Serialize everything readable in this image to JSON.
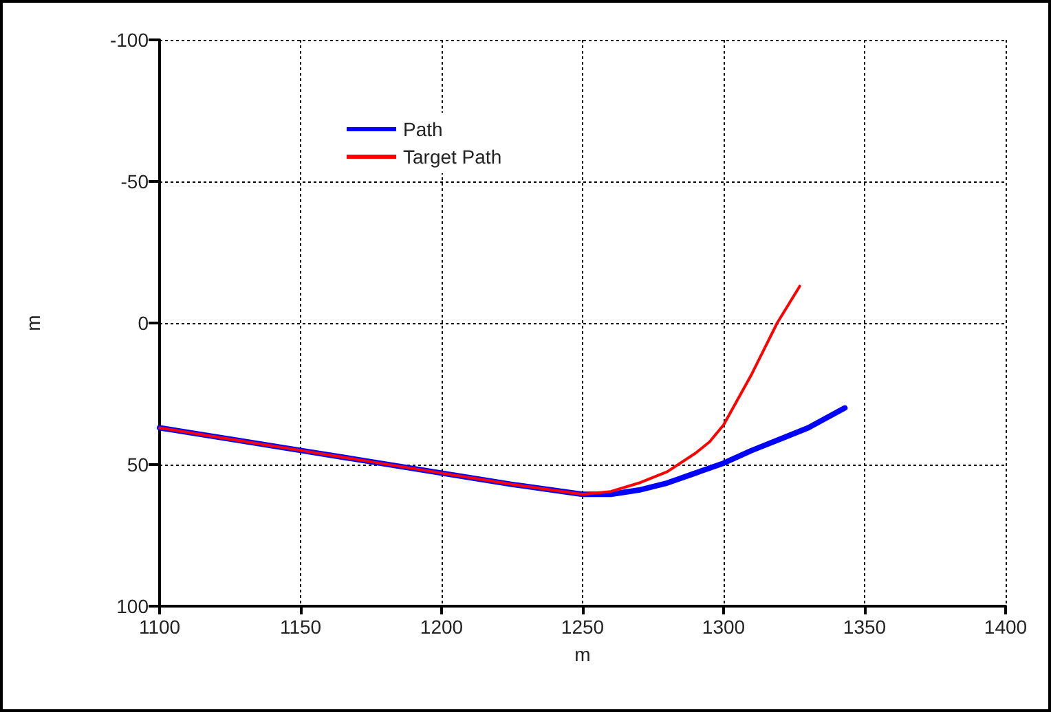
{
  "chart_data": {
    "type": "line",
    "xlabel": "m",
    "ylabel": "m",
    "xlim": [
      1100,
      1400
    ],
    "xticks": [
      1100,
      1150,
      1200,
      1250,
      1300,
      1350,
      1400
    ],
    "ylim": [
      100,
      -100
    ],
    "yticks": [
      -100,
      -50,
      0,
      50,
      100
    ],
    "grid": true,
    "legend": "top left",
    "marker": "none",
    "line_style": "solid",
    "series": [
      {
        "name": "Path",
        "color": "#0000ff",
        "x": [
          1100,
          1125,
          1150,
          1175,
          1200,
          1225,
          1250,
          1260,
          1270,
          1280,
          1290,
          1300,
          1310,
          1320,
          1330,
          1343
        ],
        "values": [
          37,
          41,
          45,
          49,
          53,
          57,
          60.5,
          60.5,
          59,
          56.5,
          53,
          49.5,
          45,
          41,
          37,
          30
        ]
      },
      {
        "name": "Target Path",
        "color": "#ff0000",
        "x": [
          1100,
          1125,
          1150,
          1175,
          1200,
          1225,
          1250,
          1260,
          1270,
          1280,
          1290,
          1295,
          1300,
          1310,
          1319,
          1327
        ],
        "values": [
          37,
          41,
          45,
          49,
          53,
          57,
          60.5,
          59.5,
          56.5,
          52.5,
          46,
          42,
          36,
          18,
          0,
          -13
        ]
      }
    ]
  }
}
